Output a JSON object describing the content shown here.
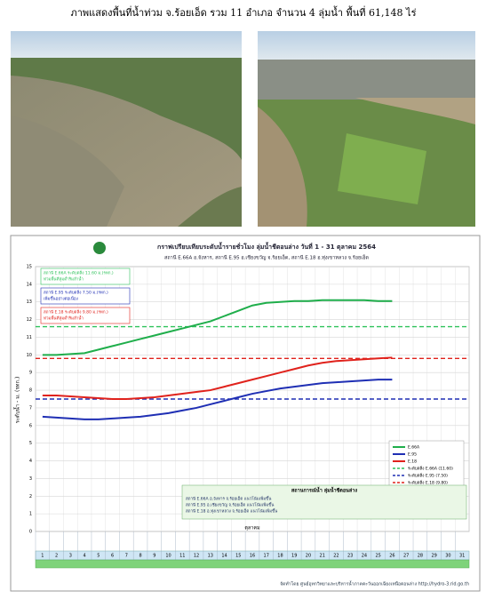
{
  "header": {
    "title": "ภาพแสดงพื้นที่น้ำท่วม จ.ร้อยเอ็ด รวม 11 อำเภอ จำนวน 4 ลุ่มน้ำ พื้นที่ 61,148 ไร่"
  },
  "chart_data": {
    "type": "line",
    "title": "กราฟเปรียบเทียบระดับน้ำรายชั่วโมง ลุ่มน้ำชีตอนล่าง วันที่ 1 - 31 ตุลาคม 2564",
    "subtitle": "สถานี E.66A อ.จังหาร, สถานี E.95 อ.เชียงขวัญ จ.ร้อยเอ็ด, สถานี E.18 อ.ทุ่งเขาหลวง จ.ร้อยเอ็ด",
    "y_label": "ระดับน้ำ - ม. (รทก.)",
    "x_label": "ตุลาคม",
    "categories": [
      "1",
      "2",
      "3",
      "4",
      "5",
      "6",
      "7",
      "8",
      "9",
      "10",
      "11",
      "12",
      "13",
      "14",
      "15",
      "16",
      "17",
      "18",
      "19",
      "20",
      "21",
      "22",
      "23",
      "24",
      "25",
      "26",
      "27",
      "28",
      "29",
      "30",
      "31"
    ],
    "series": [
      {
        "name": "E.66A",
        "color": "#1fae4b",
        "values": [
          10.0,
          10.0,
          10.05,
          10.1,
          10.3,
          10.5,
          10.7,
          10.9,
          11.1,
          11.3,
          11.5,
          11.7,
          11.9,
          12.2,
          12.5,
          12.8,
          12.95,
          13.0,
          13.05,
          13.05,
          13.1,
          13.1,
          13.1,
          13.1,
          13.05,
          13.05,
          null,
          null,
          null,
          null,
          null
        ]
      },
      {
        "name": "E.95",
        "color": "#1f2fb4",
        "values": [
          6.5,
          6.45,
          6.4,
          6.35,
          6.35,
          6.4,
          6.45,
          6.5,
          6.6,
          6.7,
          6.85,
          7.0,
          7.2,
          7.4,
          7.6,
          7.8,
          7.95,
          8.1,
          8.2,
          8.3,
          8.4,
          8.45,
          8.5,
          8.55,
          8.6,
          8.6,
          null,
          null,
          null,
          null,
          null
        ]
      },
      {
        "name": "E.18",
        "color": "#e0221c",
        "values": [
          7.7,
          7.7,
          7.65,
          7.6,
          7.55,
          7.5,
          7.5,
          7.55,
          7.6,
          7.7,
          7.8,
          7.9,
          8.0,
          8.2,
          8.4,
          8.6,
          8.8,
          9.0,
          9.2,
          9.4,
          9.55,
          9.65,
          9.7,
          9.75,
          9.8,
          9.85,
          null,
          null,
          null,
          null,
          null
        ]
      }
    ],
    "thresholds": [
      {
        "name": "ระดับตลิ่ง E.66A (11.60)",
        "value": 11.6,
        "color": "#2fc25b"
      },
      {
        "name": "ระดับตลิ่ง E.95 (7.50)",
        "value": 7.5,
        "color": "#1f2fb4"
      },
      {
        "name": "ระดับตลิ่ง E.18 (9.80)",
        "value": 9.8,
        "color": "#e0221c"
      }
    ],
    "ylim": [
      0,
      15
    ],
    "yticks": [
      0,
      1,
      2,
      3,
      4,
      5,
      6,
      7,
      8,
      9,
      10,
      11,
      12,
      13,
      14,
      15
    ],
    "grid": true,
    "legend": "lower right",
    "annotations": [
      {
        "title": "สถานี E.66A ระดับตลิ่ง 11.60 ม.(รทก.)",
        "text": "ท่วมพื้นที่ลุ่มต่ำริมลำน้ำ"
      },
      {
        "title": "สถานี E.95 ระดับตลิ่ง 7.50 ม.(รทก.)",
        "text": "เพิ่มขึ้นอย่างต่อเนื่อง"
      },
      {
        "title": "สถานี E.18 ระดับตลิ่ง 9.80 ม.(รทก.)",
        "text": "ท่วมพื้นที่ลุ่มต่ำริมลำน้ำ"
      }
    ],
    "table_title": "สถานการณ์น้ำ ลุ่มน้ำชีตอนล่าง",
    "table_lines": [
      "สถานี E.66A อ.จังหาร จ.ร้อยเอ็ด แนวโน้มเพิ่มขึ้น",
      "สถานี E.95 อ.เชียงขวัญ จ.ร้อยเอ็ด แนวโน้มเพิ่มขึ้น",
      "สถานี E.18 อ.ทุ่งเขาหลวง จ.ร้อยเอ็ด แนวโน้มเพิ่มขึ้น"
    ],
    "footer": "จัดทำโดย ศูนย์อุทกวิทยาและบริหารน้ำภาคตะวันออกเฉียงเหนือตอนล่าง http://hydro-3.rid.go.th"
  }
}
